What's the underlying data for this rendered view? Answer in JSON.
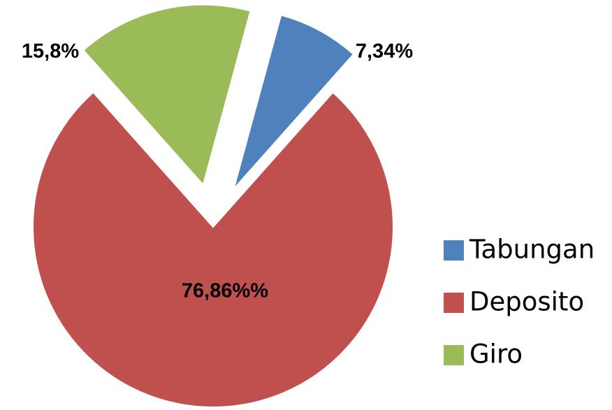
{
  "chart_data": {
    "type": "pie",
    "categories": [
      "Tabungan",
      "Deposito",
      "Giro"
    ],
    "values": [
      7.34,
      76.86,
      15.8
    ],
    "value_labels": [
      "7,34%",
      "76,86%%",
      "15,8%"
    ],
    "colors": [
      "#4f81bd",
      "#c0504d",
      "#9bbb59"
    ],
    "exploded": [
      true,
      false,
      true
    ],
    "legend": "right"
  }
}
